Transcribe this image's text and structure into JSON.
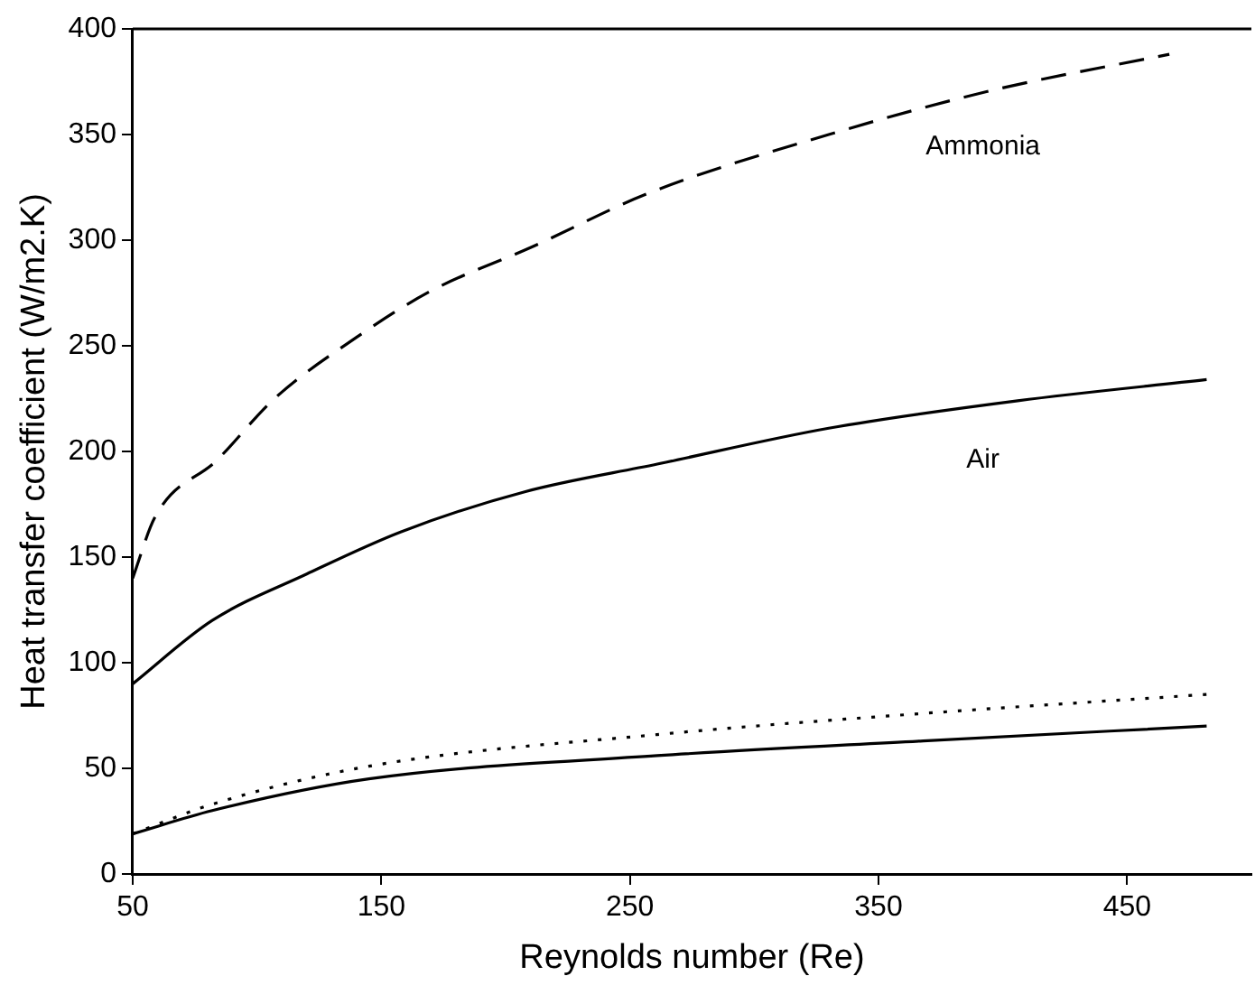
{
  "chart_data": {
    "type": "line",
    "xlabel": "Reynolds number (Re)",
    "ylabel": "Heat transfer coefficient (W/m2.K)",
    "xlim": [
      50,
      500
    ],
    "xticks": [
      50,
      150,
      250,
      350,
      450
    ],
    "ylim": [
      0,
      400
    ],
    "yticks": [
      0,
      50,
      100,
      150,
      200,
      250,
      300,
      350,
      400
    ],
    "grid": false,
    "legend": false,
    "marker": "none",
    "series": [
      {
        "name": "Ammonia",
        "color": "#000000",
        "line_style": "dashed",
        "x": [
          50,
          59,
          84,
          107,
          140,
          170,
          211,
          257,
          330,
          396,
          467
        ],
        "values": [
          140,
          169,
          196,
          225,
          254,
          276,
          297,
          322,
          350,
          371,
          388
        ]
      },
      {
        "name": "Air",
        "color": "#000000",
        "line_style": "solid",
        "x": [
          50,
          82,
          120,
          158,
          208,
          261,
          330,
          406,
          482
        ],
        "values": [
          90,
          120,
          142,
          162,
          181,
          194,
          211,
          224,
          234
        ]
      },
      {
        "color": "#000000",
        "line_style": "dotted",
        "x": [
          50,
          82,
          145,
          261,
          368,
          482
        ],
        "values": [
          19,
          33,
          51,
          66,
          76,
          85
        ]
      },
      {
        "color": "#000000",
        "line_style": "solid",
        "x": [
          50,
          82,
          145,
          261,
          368,
          482
        ],
        "values": [
          19,
          30,
          45,
          56,
          63,
          70
        ]
      }
    ]
  }
}
